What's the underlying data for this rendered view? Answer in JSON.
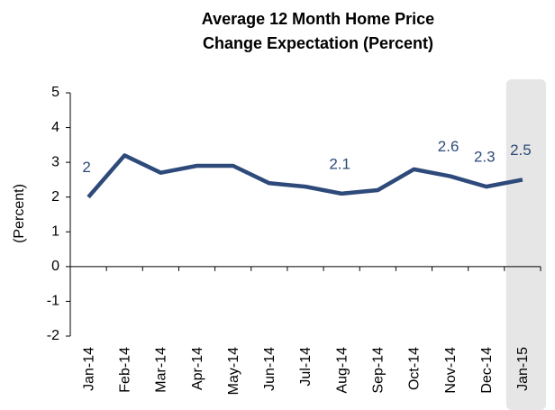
{
  "chart_data": {
    "type": "line",
    "title": "Average 12 Month Home Price Change Expectation (Percent)",
    "y_label": "(Percent)",
    "categories": [
      "Jan-14",
      "Feb-14",
      "Mar-14",
      "Apr-14",
      "May-14",
      "Jun-14",
      "Jul-14",
      "Aug-14",
      "Sep-14",
      "Oct-14",
      "Nov-14",
      "Dec-14",
      "Jan-15"
    ],
    "values": [
      2,
      3.2,
      2.7,
      2.9,
      2.9,
      2.4,
      2.3,
      2.1,
      2.2,
      2.8,
      2.6,
      2.3,
      2.5
    ],
    "value_labels": [
      "2",
      null,
      null,
      null,
      null,
      null,
      null,
      "2.1",
      null,
      null,
      "2.6",
      "2.3",
      "2.5"
    ],
    "color": "#2e4a7a",
    "highlight_categories": [
      "Jan-15"
    ],
    "highlight_color": "#e6e6e6",
    "ylim": [
      -2,
      5
    ],
    "yticks": [
      -2,
      -1,
      0,
      1,
      2,
      3,
      4,
      5
    ],
    "grid": false
  }
}
